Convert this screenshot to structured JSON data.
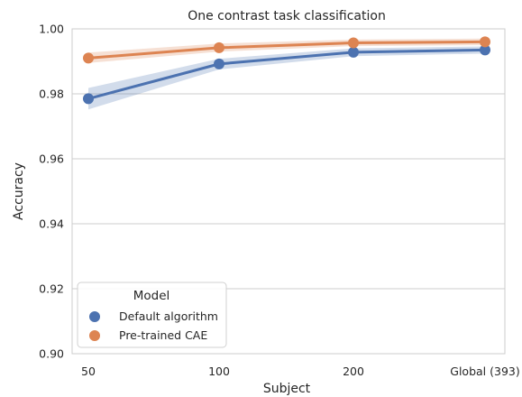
{
  "chart_data": {
    "type": "line",
    "title": "One contrast task classification",
    "xlabel": "Subject",
    "ylabel": "Accuracy",
    "categories": [
      "50",
      "100",
      "200",
      "Global (393)"
    ],
    "ylim": [
      0.9,
      1.0
    ],
    "yticks": [
      "0.90",
      "0.92",
      "0.94",
      "0.96",
      "0.98",
      "1.00"
    ],
    "grid": true,
    "legend": {
      "title": "Model",
      "placement": "lower-left"
    },
    "series": [
      {
        "name": "Default algorithm",
        "color": "#4c72b0",
        "values": [
          0.9785,
          0.9892,
          0.9928,
          0.9935
        ],
        "ci_low": [
          0.9752,
          0.9875,
          0.9916,
          0.9924
        ],
        "ci_high": [
          0.9818,
          0.9908,
          0.994,
          0.9946
        ]
      },
      {
        "name": "Pre-trained CAE",
        "color": "#dd8452",
        "values": [
          0.991,
          0.9942,
          0.9957,
          0.996
        ],
        "ci_low": [
          0.9895,
          0.993,
          0.9947,
          0.995
        ],
        "ci_high": [
          0.9927,
          0.9955,
          0.9967,
          0.997
        ]
      }
    ]
  }
}
